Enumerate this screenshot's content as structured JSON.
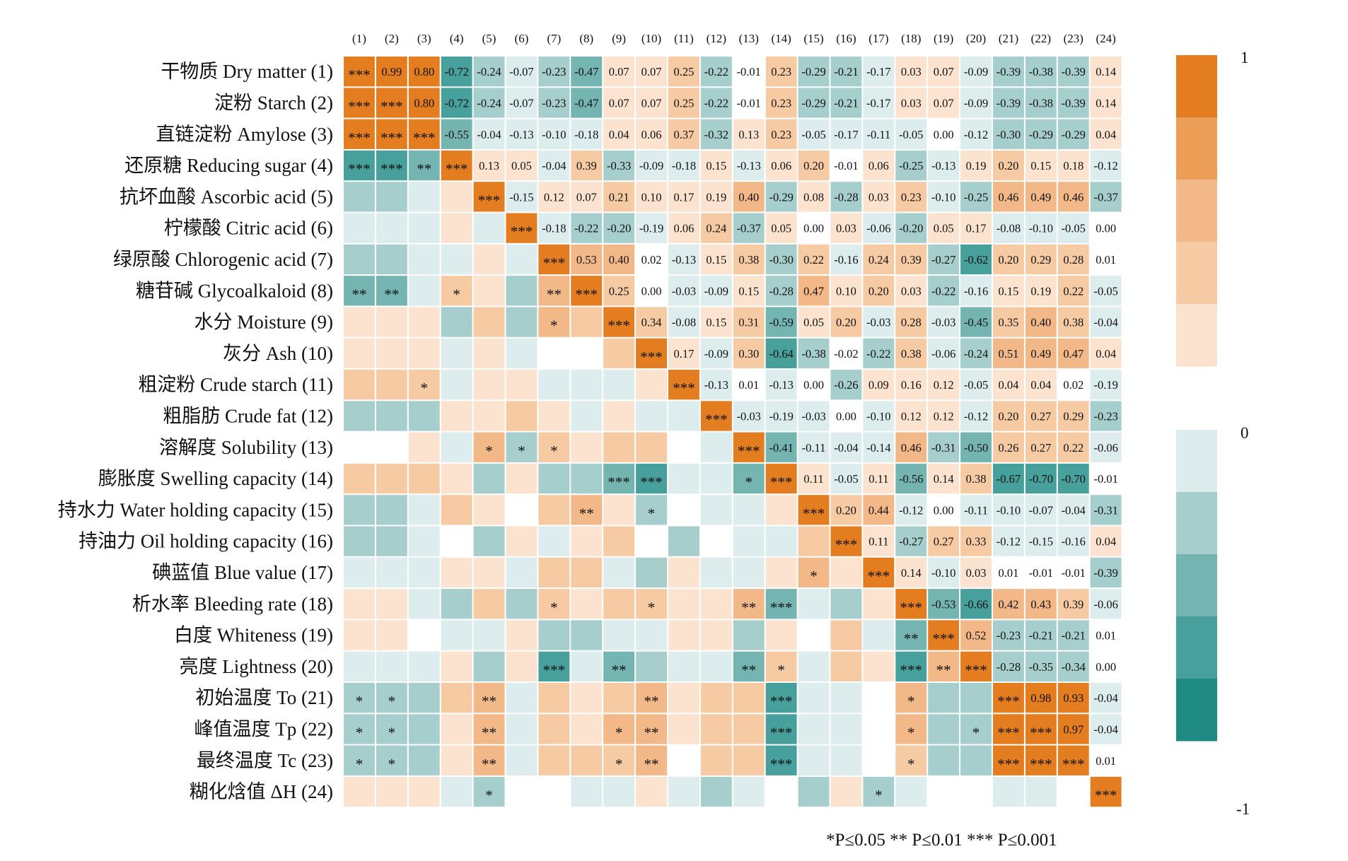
{
  "chart_data": {
    "type": "heatmap",
    "col_labels": [
      "(1)",
      "(2)",
      "(3)",
      "(4)",
      "(5)",
      "(6)",
      "(7)",
      "(8)",
      "(9)",
      "(10)",
      "(11)",
      "(12)",
      "(13)",
      "(14)",
      "(15)",
      "(16)",
      "(17)",
      "(18)",
      "(19)",
      "(20)",
      "(21)",
      "(22)",
      "(23)",
      "(24)"
    ],
    "row_labels": [
      "干物质 Dry matter (1)",
      "淀粉 Starch (2)",
      "直链淀粉 Amylose (3)",
      "还原糖 Reducing sugar (4)",
      "抗坏血酸 Ascorbic acid (5)",
      "柠檬酸 Citric acid (6)",
      "绿原酸 Chlorogenic acid (7)",
      "糖苷碱 Glycoalkaloid (8)",
      "水分 Moisture (9)",
      "灰分 Ash (10)",
      "粗淀粉 Crude starch (11)",
      "粗脂肪 Crude fat (12)",
      "溶解度 Solubility (13)",
      "膨胀度 Swelling capacity (14)",
      "持水力 Water holding capacity (15)",
      "持油力 Oil holding capacity (16)",
      "碘蓝值 Blue value (17)",
      "析水率 Bleeding rate (18)",
      "白度 Whiteness (19)",
      "亮度 Lightness (20)",
      "初始温度 To (21)",
      "峰值温度 Tp (22)",
      "最终温度 Tc (23)",
      "糊化焓值 ΔH (24)"
    ],
    "upper_values": [
      [
        null,
        "0.99",
        "0.80",
        "-0.72",
        "-0.24",
        "-0.07",
        "-0.23",
        "-0.47",
        "0.07",
        "0.07",
        "0.25",
        "-0.22",
        "-0.01",
        "0.23",
        "-0.29",
        "-0.21",
        "-0.17",
        "0.03",
        "0.07",
        "-0.09",
        "-0.39",
        "-0.38",
        "-0.39",
        "0.14"
      ],
      [
        null,
        null,
        "0.80",
        "-0.72",
        "-0.24",
        "-0.07",
        "-0.23",
        "-0.47",
        "0.07",
        "0.07",
        "0.25",
        "-0.22",
        "-0.01",
        "0.23",
        "-0.29",
        "-0.21",
        "-0.17",
        "0.03",
        "0.07",
        "-0.09",
        "-0.39",
        "-0.38",
        "-0.39",
        "0.14"
      ],
      [
        null,
        null,
        null,
        "-0.55",
        "-0.04",
        "-0.13",
        "-0.10",
        "-0.18",
        "0.04",
        "0.06",
        "0.37",
        "-0.32",
        "0.13",
        "0.23",
        "-0.05",
        "-0.17",
        "-0.11",
        "-0.05",
        "0.00",
        "-0.12",
        "-0.30",
        "-0.29",
        "-0.29",
        "0.04"
      ],
      [
        null,
        null,
        null,
        null,
        "0.13",
        "0.05",
        "-0.04",
        "0.39",
        "-0.33",
        "-0.09",
        "-0.18",
        "0.15",
        "-0.13",
        "0.06",
        "0.20",
        "-0.01",
        "0.06",
        "-0.25",
        "-0.13",
        "0.19",
        "0.20",
        "0.15",
        "0.18",
        "-0.12"
      ],
      [
        null,
        null,
        null,
        null,
        null,
        "-0.15",
        "0.12",
        "0.07",
        "0.21",
        "0.10",
        "0.17",
        "0.19",
        "0.40",
        "-0.29",
        "0.08",
        "-0.28",
        "0.03",
        "0.23",
        "-0.10",
        "-0.25",
        "0.46",
        "0.49",
        "0.46",
        "-0.37"
      ],
      [
        null,
        null,
        null,
        null,
        null,
        null,
        "-0.18",
        "-0.22",
        "-0.20",
        "-0.19",
        "0.06",
        "0.24",
        "-0.37",
        "0.05",
        "0.00",
        "0.03",
        "-0.06",
        "-0.20",
        "0.05",
        "0.17",
        "-0.08",
        "-0.10",
        "-0.05",
        "0.00"
      ],
      [
        null,
        null,
        null,
        null,
        null,
        null,
        null,
        "0.53",
        "0.40",
        "0.02",
        "-0.13",
        "0.15",
        "0.38",
        "-0.30",
        "0.22",
        "-0.16",
        "0.24",
        "0.39",
        "-0.27",
        "-0.62",
        "0.20",
        "0.29",
        "0.28",
        "0.01"
      ],
      [
        null,
        null,
        null,
        null,
        null,
        null,
        null,
        null,
        "0.25",
        "0.00",
        "-0.03",
        "-0.09",
        "0.15",
        "-0.28",
        "0.47",
        "0.10",
        "0.20",
        "0.03",
        "-0.22",
        "-0.16",
        "0.15",
        "0.19",
        "0.22",
        "-0.05"
      ],
      [
        null,
        null,
        null,
        null,
        null,
        null,
        null,
        null,
        null,
        "0.34",
        "-0.08",
        "0.15",
        "0.31",
        "-0.59",
        "0.05",
        "0.20",
        "-0.03",
        "0.28",
        "-0.03",
        "-0.45",
        "0.35",
        "0.40",
        "0.38",
        "-0.04"
      ],
      [
        null,
        null,
        null,
        null,
        null,
        null,
        null,
        null,
        null,
        null,
        "0.17",
        "-0.09",
        "0.30",
        "-0.64",
        "-0.38",
        "-0.02",
        "-0.22",
        "0.38",
        "-0.06",
        "-0.24",
        "0.51",
        "0.49",
        "0.47",
        "0.04"
      ],
      [
        null,
        null,
        null,
        null,
        null,
        null,
        null,
        null,
        null,
        null,
        null,
        "-0.13",
        "0.01",
        "-0.13",
        "0.00",
        "-0.26",
        "0.09",
        "0.16",
        "0.12",
        "-0.05",
        "0.04",
        "0.04",
        "0.02",
        "-0.19"
      ],
      [
        null,
        null,
        null,
        null,
        null,
        null,
        null,
        null,
        null,
        null,
        null,
        null,
        "-0.03",
        "-0.19",
        "-0.03",
        "0.00",
        "-0.10",
        "0.12",
        "0.12",
        "-0.12",
        "0.20",
        "0.27",
        "0.29",
        "-0.23"
      ],
      [
        null,
        null,
        null,
        null,
        null,
        null,
        null,
        null,
        null,
        null,
        null,
        null,
        null,
        "-0.41",
        "-0.11",
        "-0.04",
        "-0.14",
        "0.46",
        "-0.31",
        "-0.50",
        "0.26",
        "0.27",
        "0.22",
        "-0.06"
      ],
      [
        null,
        null,
        null,
        null,
        null,
        null,
        null,
        null,
        null,
        null,
        null,
        null,
        null,
        null,
        "0.11",
        "-0.05",
        "0.11",
        "-0.56",
        "0.14",
        "0.38",
        "-0.67",
        "-0.70",
        "-0.70",
        "-0.01"
      ],
      [
        null,
        null,
        null,
        null,
        null,
        null,
        null,
        null,
        null,
        null,
        null,
        null,
        null,
        null,
        null,
        "0.20",
        "0.44",
        "-0.12",
        "0.00",
        "-0.11",
        "-0.10",
        "-0.07",
        "-0.04",
        "-0.31"
      ],
      [
        null,
        null,
        null,
        null,
        null,
        null,
        null,
        null,
        null,
        null,
        null,
        null,
        null,
        null,
        null,
        null,
        "0.11",
        "-0.27",
        "0.27",
        "0.33",
        "-0.12",
        "-0.15",
        "-0.16",
        "0.04"
      ],
      [
        null,
        null,
        null,
        null,
        null,
        null,
        null,
        null,
        null,
        null,
        null,
        null,
        null,
        null,
        null,
        null,
        null,
        "0.14",
        "-0.10",
        "0.03",
        "0.01",
        "-0.01",
        "-0.01",
        "-0.39"
      ],
      [
        null,
        null,
        null,
        null,
        null,
        null,
        null,
        null,
        null,
        null,
        null,
        null,
        null,
        null,
        null,
        null,
        null,
        null,
        "-0.53",
        "-0.66",
        "0.42",
        "0.43",
        "0.39",
        "-0.06"
      ],
      [
        null,
        null,
        null,
        null,
        null,
        null,
        null,
        null,
        null,
        null,
        null,
        null,
        null,
        null,
        null,
        null,
        null,
        null,
        null,
        "0.52",
        "-0.23",
        "-0.21",
        "-0.21",
        "0.01"
      ],
      [
        null,
        null,
        null,
        null,
        null,
        null,
        null,
        null,
        null,
        null,
        null,
        null,
        null,
        null,
        null,
        null,
        null,
        null,
        null,
        null,
        "-0.28",
        "-0.35",
        "-0.34",
        "0.00"
      ],
      [
        null,
        null,
        null,
        null,
        null,
        null,
        null,
        null,
        null,
        null,
        null,
        null,
        null,
        null,
        null,
        null,
        null,
        null,
        null,
        null,
        null,
        "0.98",
        "0.93",
        "-0.04"
      ],
      [
        null,
        null,
        null,
        null,
        null,
        null,
        null,
        null,
        null,
        null,
        null,
        null,
        null,
        null,
        null,
        null,
        null,
        null,
        null,
        null,
        null,
        null,
        "0.97",
        "-0.04"
      ],
      [
        null,
        null,
        null,
        null,
        null,
        null,
        null,
        null,
        null,
        null,
        null,
        null,
        null,
        null,
        null,
        null,
        null,
        null,
        null,
        null,
        null,
        null,
        null,
        "0.01"
      ],
      [
        null,
        null,
        null,
        null,
        null,
        null,
        null,
        null,
        null,
        null,
        null,
        null,
        null,
        null,
        null,
        null,
        null,
        null,
        null,
        null,
        null,
        null,
        null,
        null
      ]
    ],
    "significance": [
      {
        "r": 1,
        "c": 1,
        "s": "***"
      },
      {
        "r": 2,
        "c": 2,
        "s": "***"
      },
      {
        "r": 3,
        "c": 3,
        "s": "***"
      },
      {
        "r": 4,
        "c": 4,
        "s": "***"
      },
      {
        "r": 5,
        "c": 5,
        "s": "***"
      },
      {
        "r": 6,
        "c": 6,
        "s": "***"
      },
      {
        "r": 7,
        "c": 7,
        "s": "***"
      },
      {
        "r": 8,
        "c": 8,
        "s": "***"
      },
      {
        "r": 9,
        "c": 9,
        "s": "***"
      },
      {
        "r": 10,
        "c": 10,
        "s": "***"
      },
      {
        "r": 11,
        "c": 11,
        "s": "***"
      },
      {
        "r": 12,
        "c": 12,
        "s": "***"
      },
      {
        "r": 13,
        "c": 13,
        "s": "***"
      },
      {
        "r": 14,
        "c": 14,
        "s": "***"
      },
      {
        "r": 15,
        "c": 15,
        "s": "***"
      },
      {
        "r": 16,
        "c": 16,
        "s": "***"
      },
      {
        "r": 17,
        "c": 17,
        "s": "***"
      },
      {
        "r": 18,
        "c": 18,
        "s": "***"
      },
      {
        "r": 19,
        "c": 19,
        "s": "***"
      },
      {
        "r": 20,
        "c": 20,
        "s": "***"
      },
      {
        "r": 21,
        "c": 21,
        "s": "***"
      },
      {
        "r": 22,
        "c": 22,
        "s": "***"
      },
      {
        "r": 23,
        "c": 23,
        "s": "***"
      },
      {
        "r": 24,
        "c": 24,
        "s": "***"
      },
      {
        "r": 2,
        "c": 1,
        "s": "***"
      },
      {
        "r": 3,
        "c": 1,
        "s": "***"
      },
      {
        "r": 3,
        "c": 2,
        "s": "***"
      },
      {
        "r": 4,
        "c": 1,
        "s": "***"
      },
      {
        "r": 4,
        "c": 2,
        "s": "***"
      },
      {
        "r": 4,
        "c": 3,
        "s": "**"
      },
      {
        "r": 8,
        "c": 1,
        "s": "**"
      },
      {
        "r": 8,
        "c": 2,
        "s": "**"
      },
      {
        "r": 8,
        "c": 4,
        "s": "*"
      },
      {
        "r": 8,
        "c": 7,
        "s": "**"
      },
      {
        "r": 9,
        "c": 7,
        "s": "*"
      },
      {
        "r": 11,
        "c": 3,
        "s": "*"
      },
      {
        "r": 13,
        "c": 5,
        "s": "*"
      },
      {
        "r": 13,
        "c": 6,
        "s": "*"
      },
      {
        "r": 13,
        "c": 7,
        "s": "*"
      },
      {
        "r": 14,
        "c": 9,
        "s": "***"
      },
      {
        "r": 14,
        "c": 10,
        "s": "***"
      },
      {
        "r": 14,
        "c": 13,
        "s": "*"
      },
      {
        "r": 15,
        "c": 8,
        "s": "**"
      },
      {
        "r": 15,
        "c": 10,
        "s": "*"
      },
      {
        "r": 17,
        "c": 15,
        "s": "*"
      },
      {
        "r": 18,
        "c": 7,
        "s": "*"
      },
      {
        "r": 18,
        "c": 10,
        "s": "*"
      },
      {
        "r": 18,
        "c": 13,
        "s": "**"
      },
      {
        "r": 18,
        "c": 14,
        "s": "***"
      },
      {
        "r": 19,
        "c": 18,
        "s": "**"
      },
      {
        "r": 20,
        "c": 7,
        "s": "***"
      },
      {
        "r": 20,
        "c": 9,
        "s": "**"
      },
      {
        "r": 20,
        "c": 13,
        "s": "**"
      },
      {
        "r": 20,
        "c": 14,
        "s": "*"
      },
      {
        "r": 20,
        "c": 18,
        "s": "***"
      },
      {
        "r": 20,
        "c": 19,
        "s": "**"
      },
      {
        "r": 21,
        "c": 1,
        "s": "*"
      },
      {
        "r": 21,
        "c": 2,
        "s": "*"
      },
      {
        "r": 21,
        "c": 5,
        "s": "**"
      },
      {
        "r": 21,
        "c": 10,
        "s": "**"
      },
      {
        "r": 21,
        "c": 14,
        "s": "***"
      },
      {
        "r": 21,
        "c": 18,
        "s": "*"
      },
      {
        "r": 22,
        "c": 1,
        "s": "*"
      },
      {
        "r": 22,
        "c": 2,
        "s": "*"
      },
      {
        "r": 22,
        "c": 5,
        "s": "**"
      },
      {
        "r": 22,
        "c": 9,
        "s": "*"
      },
      {
        "r": 22,
        "c": 10,
        "s": "**"
      },
      {
        "r": 22,
        "c": 14,
        "s": "***"
      },
      {
        "r": 22,
        "c": 18,
        "s": "*"
      },
      {
        "r": 22,
        "c": 20,
        "s": "*"
      },
      {
        "r": 22,
        "c": 21,
        "s": "***"
      },
      {
        "r": 23,
        "c": 1,
        "s": "*"
      },
      {
        "r": 23,
        "c": 2,
        "s": "*"
      },
      {
        "r": 23,
        "c": 5,
        "s": "**"
      },
      {
        "r": 23,
        "c": 9,
        "s": "*"
      },
      {
        "r": 23,
        "c": 10,
        "s": "**"
      },
      {
        "r": 23,
        "c": 14,
        "s": "***"
      },
      {
        "r": 23,
        "c": 18,
        "s": "*"
      },
      {
        "r": 23,
        "c": 21,
        "s": "***"
      },
      {
        "r": 23,
        "c": 22,
        "s": "***"
      },
      {
        "r": 24,
        "c": 5,
        "s": "*"
      },
      {
        "r": 24,
        "c": 17,
        "s": "*"
      }
    ],
    "legend": {
      "labels": [
        "1",
        "0",
        "-1"
      ],
      "positive_colors": [
        "#e47c20",
        "#ec9d56",
        "#f2b888",
        "#f6cba4",
        "#fbe3cf"
      ],
      "negative_colors": [
        "#ddeced",
        "#a6cecd",
        "#74b4b1",
        "#47a09b",
        "#1f8a82"
      ]
    },
    "footnote": "*P≤0.05 ** P≤0.01 *** P≤0.001"
  }
}
